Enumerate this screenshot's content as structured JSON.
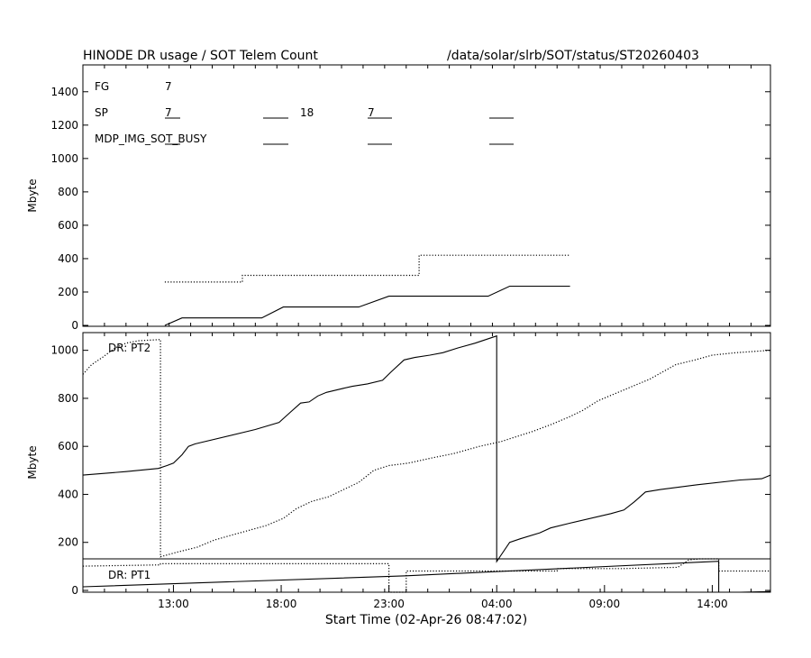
{
  "header": {
    "title": "HINODE DR usage / SOT Telem Count",
    "path": "/data/solar/slrb/SOT/status/ST20260403"
  },
  "xaxis": {
    "label": "Start Time (02-Apr-26 08:47:02)",
    "ticks": [
      {
        "label": "13:00",
        "h": 4.2
      },
      {
        "label": "18:00",
        "h": 9.2
      },
      {
        "label": "23:00",
        "h": 14.2
      },
      {
        "label": "04:00",
        "h": 19.2
      },
      {
        "label": "09:00",
        "h": 24.2
      },
      {
        "label": "14:00",
        "h": 29.2
      }
    ],
    "range_hours": [
      0,
      31.9
    ]
  },
  "top_panel": {
    "ylabel": "Mbyte",
    "ylim": [
      0,
      1550
    ],
    "yticks": [
      "0",
      "200",
      "400",
      "600",
      "800",
      "1000",
      "1200",
      "1400"
    ],
    "ytick_values": [
      0,
      200,
      400,
      600,
      800,
      1000,
      1200,
      1400
    ],
    "legend": {
      "fg_label": "FG",
      "fg_count": "7",
      "sp_label": "SP",
      "sp_counts": [
        "7",
        "18",
        "7"
      ],
      "busy_label": "MDP_IMG_SOT_BUSY"
    }
  },
  "bottom_panel": {
    "ylabel": "Mbyte",
    "ylim": [
      0,
      1070
    ],
    "yticks": [
      "0",
      "200",
      "400",
      "600",
      "800",
      "1000"
    ],
    "ytick_values": [
      0,
      200,
      400,
      600,
      800,
      1000
    ],
    "pt2_label": "DR: PT2",
    "pt1_label": "DR: PT1"
  },
  "chart_data": {
    "type": "line",
    "series": [
      {
        "panel": "top",
        "style": "dotted",
        "points": [
          [
            3.8,
            260
          ],
          [
            7.4,
            260
          ],
          [
            7.4,
            300
          ],
          [
            15.6,
            300
          ],
          [
            15.6,
            420
          ],
          [
            22.6,
            420
          ]
        ]
      },
      {
        "panel": "top",
        "style": "solid",
        "points": [
          [
            3.8,
            0
          ],
          [
            4.6,
            45
          ],
          [
            8.3,
            45
          ],
          [
            9.3,
            110
          ],
          [
            12.8,
            110
          ],
          [
            14.2,
            175
          ],
          [
            18.8,
            175
          ],
          [
            19.8,
            235
          ],
          [
            22.6,
            235
          ]
        ]
      },
      {
        "panel": "bottom",
        "style": "solid",
        "points": [
          [
            0,
            480
          ],
          [
            2,
            495
          ],
          [
            3.5,
            508
          ],
          [
            3.9,
            520
          ],
          [
            4.2,
            530
          ],
          [
            4.6,
            565
          ],
          [
            4.9,
            600
          ],
          [
            5.2,
            610
          ],
          [
            8,
            670
          ],
          [
            9.1,
            700
          ],
          [
            9.6,
            740
          ],
          [
            10.1,
            780
          ],
          [
            10.5,
            785
          ],
          [
            10.9,
            810
          ],
          [
            11.3,
            825
          ],
          [
            12,
            840
          ],
          [
            12.5,
            850
          ],
          [
            13.2,
            860
          ],
          [
            13.9,
            875
          ],
          [
            14.3,
            910
          ],
          [
            14.9,
            960
          ],
          [
            15.4,
            970
          ],
          [
            16.1,
            980
          ],
          [
            16.7,
            990
          ],
          [
            17.4,
            1010
          ],
          [
            18.2,
            1030
          ],
          [
            19.2,
            1060
          ],
          [
            19.2,
            120
          ],
          [
            19.8,
            200
          ],
          [
            20.3,
            215
          ],
          [
            21.2,
            240
          ],
          [
            21.7,
            260
          ],
          [
            22.6,
            280
          ],
          [
            24.5,
            320
          ],
          [
            25.1,
            335
          ],
          [
            25.6,
            370
          ],
          [
            26.1,
            410
          ],
          [
            26.8,
            420
          ],
          [
            28.5,
            440
          ],
          [
            30.5,
            460
          ],
          [
            31.5,
            465
          ],
          [
            31.9,
            480
          ]
        ]
      },
      {
        "panel": "bottom",
        "style": "dotted",
        "points": [
          [
            0,
            900
          ],
          [
            0.4,
            940
          ],
          [
            0.9,
            970
          ],
          [
            1.5,
            1010
          ],
          [
            2,
            1030
          ],
          [
            2.6,
            1040
          ],
          [
            3.6,
            1045
          ],
          [
            3.6,
            140
          ],
          [
            4.4,
            160
          ],
          [
            5.3,
            180
          ],
          [
            6.1,
            210
          ],
          [
            6.9,
            230
          ],
          [
            7.7,
            250
          ],
          [
            8.5,
            270
          ],
          [
            9.3,
            300
          ],
          [
            9.9,
            340
          ],
          [
            10.6,
            370
          ],
          [
            11.4,
            390
          ],
          [
            12.1,
            420
          ],
          [
            12.8,
            450
          ],
          [
            13.5,
            500
          ],
          [
            14.2,
            520
          ],
          [
            15.1,
            530
          ],
          [
            16.1,
            550
          ],
          [
            17.2,
            570
          ],
          [
            18.4,
            600
          ],
          [
            19.4,
            620
          ],
          [
            20.1,
            640
          ],
          [
            20.8,
            660
          ],
          [
            21.7,
            690
          ],
          [
            22.5,
            720
          ],
          [
            23.2,
            750
          ],
          [
            23.9,
            790
          ],
          [
            24.7,
            820
          ],
          [
            25.5,
            850
          ],
          [
            26.3,
            880
          ],
          [
            26.9,
            910
          ],
          [
            27.5,
            940
          ],
          [
            28.4,
            960
          ],
          [
            29.2,
            980
          ],
          [
            30.3,
            990
          ],
          [
            31.9,
            1000
          ]
        ]
      },
      {
        "panel": "pt1",
        "style": "solid",
        "points": [
          [
            0,
            15
          ],
          [
            15,
            60
          ],
          [
            29.5,
            120
          ],
          [
            29.5,
            -10
          ],
          [
            30.5,
            -10
          ],
          [
            31.9,
            -5
          ]
        ]
      },
      {
        "panel": "pt1",
        "style": "dotted",
        "points": [
          [
            0,
            100
          ],
          [
            3.6,
            105
          ],
          [
            3.6,
            110
          ],
          [
            14.2,
            110
          ],
          [
            14.2,
            -40
          ],
          [
            15,
            -40
          ],
          [
            15,
            80
          ],
          [
            22,
            80
          ],
          [
            22,
            90
          ],
          [
            25,
            90
          ],
          [
            27.6,
            95
          ],
          [
            28.1,
            125
          ],
          [
            28.6,
            130
          ],
          [
            29.5,
            130
          ],
          [
            29.5,
            80
          ],
          [
            31.9,
            80
          ]
        ]
      }
    ]
  }
}
